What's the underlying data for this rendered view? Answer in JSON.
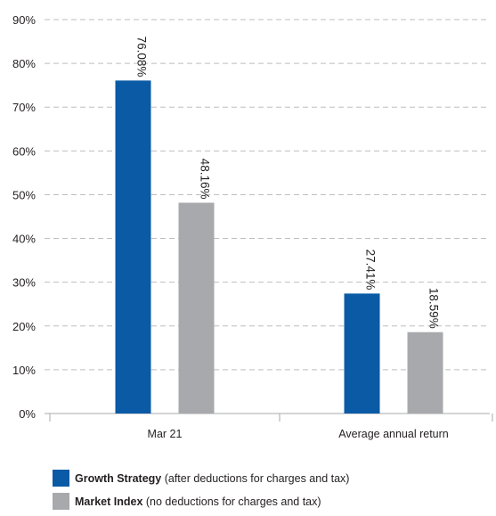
{
  "chart_data": {
    "type": "bar",
    "categories": [
      "Mar 21",
      "Average annual return"
    ],
    "series": [
      {
        "name": "Growth Strategy",
        "values": [
          76.08,
          27.41
        ],
        "labels": [
          "76.08%",
          "27.41%"
        ],
        "color": "#0a5aa6"
      },
      {
        "name": "Market Index",
        "values": [
          48.16,
          18.59
        ],
        "labels": [
          "48.16%",
          "18.59%"
        ],
        "color": "#a7a9ac"
      }
    ],
    "yticks": [
      "0%",
      "10%",
      "20%",
      "30%",
      "40%",
      "50%",
      "60%",
      "70%",
      "80%",
      "90%"
    ],
    "ylim": [
      0,
      90
    ],
    "grid": true,
    "legend_position": "bottom-left",
    "title": "",
    "xlabel": "",
    "ylabel": ""
  },
  "legend": [
    {
      "name": "Growth Strategy",
      "note": " (after deductions for charges and tax)",
      "color": "#0a5aa6"
    },
    {
      "name": "Market Index",
      "note": " (no deductions for charges and tax)",
      "color": "#a7a9ac"
    }
  ]
}
